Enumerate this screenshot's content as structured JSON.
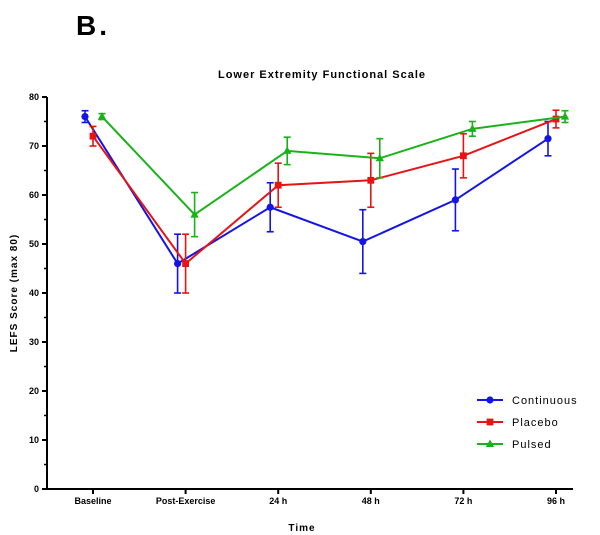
{
  "panel_label": "B.",
  "chart_data": {
    "type": "line",
    "title": "Lower Extremity Functional Scale",
    "xlabel": "Time",
    "ylabel": "LEFS Score (max 80)",
    "categories": [
      "Baseline",
      "Post-Exercise",
      "24 h",
      "48 h",
      "72 h",
      "96 h"
    ],
    "ylim": [
      0,
      80
    ],
    "yticks": [
      0,
      10,
      20,
      30,
      40,
      50,
      60,
      70,
      80
    ],
    "grid": false,
    "legend_position": "bottom-right",
    "error_bars": true,
    "series": [
      {
        "name": "Continuous",
        "color": "#1414e6",
        "marker": "circle",
        "values": [
          76,
          46,
          57.5,
          50.5,
          59,
          71.5
        ],
        "errors": [
          1.2,
          6,
          5,
          6.5,
          6.3,
          3.5
        ]
      },
      {
        "name": "Placebo",
        "color": "#e61414",
        "marker": "square",
        "values": [
          72,
          46,
          62,
          63,
          68,
          75.5
        ],
        "errors": [
          2,
          6,
          4.5,
          5.5,
          4.5,
          1.8
        ]
      },
      {
        "name": "Pulsed",
        "color": "#19b319",
        "marker": "triangle",
        "values": [
          76,
          56,
          69,
          67.5,
          73.5,
          76
        ],
        "errors": [
          0.6,
          4.5,
          2.8,
          4,
          1.5,
          1.2
        ]
      }
    ]
  }
}
